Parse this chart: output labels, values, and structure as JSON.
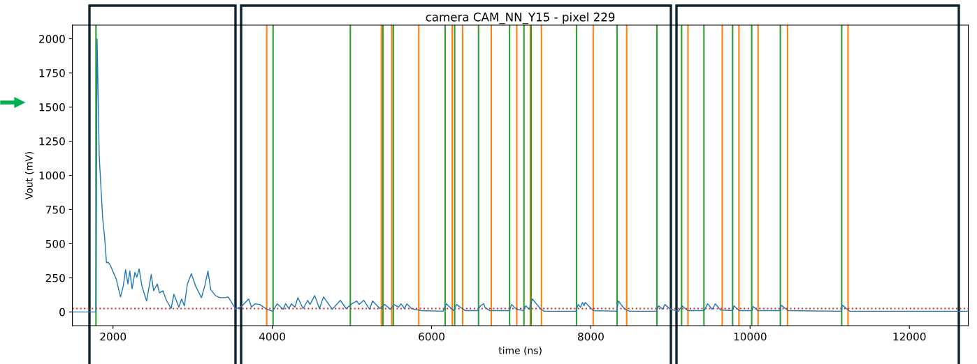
{
  "chart_data": {
    "type": "line",
    "title": "camera CAM_NN_Y15 - pixel 229",
    "xlabel": "time (ns)",
    "ylabel": "Vout (mV)",
    "xlim": [
      1490,
      12740
    ],
    "xticks": [
      2000,
      4000,
      6000,
      8000,
      10000,
      12000
    ],
    "ylim": [
      -100,
      2100
    ],
    "yticks": [
      0,
      250,
      500,
      750,
      1000,
      1250,
      1500,
      1750,
      2000
    ],
    "grid": false,
    "marker": "none",
    "line_style": "solid",
    "series": [
      {
        "color": "#1f77b4",
        "x": [
          1490,
          1785,
          1800,
          1827,
          1851,
          1871,
          1895,
          1918,
          1939,
          1968,
          1997,
          2041,
          2094,
          2129,
          2158,
          2187,
          2211,
          2240,
          2275,
          2299,
          2328,
          2363,
          2422,
          2480,
          2510,
          2556,
          2583,
          2627,
          2671,
          2730,
          2765,
          2827,
          2861,
          2896,
          2934,
          2984,
          3037,
          3110,
          3154,
          3192,
          3227,
          3286,
          3344,
          3403,
          3447,
          3505,
          3540,
          3622,
          3704,
          3739,
          3783,
          3842,
          3930,
          4005,
          4062,
          4137,
          4167,
          4210,
          4240,
          4284,
          4322,
          4386,
          4445,
          4474,
          4533,
          4592,
          4644,
          4752,
          4855,
          4928,
          5001,
          5060,
          5089,
          5148,
          5221,
          5259,
          5352,
          5411,
          5484,
          5528,
          5587,
          5616,
          5660,
          5690,
          5748,
          5865,
          6143,
          6187,
          6275,
          6313,
          6423,
          6582,
          6612,
          6656,
          6670,
          6729,
          6978,
          7007,
          7066,
          7153,
          7183,
          7227,
          7265,
          7373,
          7417,
          7812,
          7842,
          7871,
          7895,
          7915,
          7930,
          8032,
          8325,
          8345,
          8427,
          8486,
          8823,
          8852,
          8902,
          8931,
          8998,
          9101,
          9145,
          9218,
          9423,
          9467,
          9525,
          9564,
          9628,
          9780,
          9798,
          9863,
          10023,
          10038,
          10096,
          10375,
          10390,
          10478,
          11145,
          11159,
          11253,
          12732
        ],
        "values": [
          0,
          0,
          2000,
          1140,
          885,
          680,
          545,
          360,
          365,
          340,
          300,
          240,
          110,
          190,
          310,
          205,
          300,
          170,
          290,
          255,
          315,
          190,
          80,
          275,
          155,
          205,
          140,
          155,
          85,
          25,
          130,
          35,
          95,
          45,
          205,
          280,
          190,
          105,
          195,
          300,
          165,
          120,
          105,
          105,
          110,
          55,
          20,
          45,
          95,
          35,
          60,
          55,
          20,
          5,
          60,
          20,
          60,
          25,
          60,
          35,
          105,
          25,
          85,
          55,
          120,
          25,
          110,
          20,
          85,
          25,
          60,
          80,
          55,
          85,
          20,
          80,
          25,
          55,
          20,
          55,
          35,
          60,
          25,
          60,
          25,
          10,
          5,
          60,
          10,
          55,
          10,
          10,
          45,
          60,
          35,
          10,
          10,
          55,
          20,
          10,
          45,
          20,
          95,
          20,
          5,
          5,
          55,
          35,
          70,
          45,
          70,
          10,
          5,
          80,
          20,
          5,
          5,
          45,
          20,
          55,
          20,
          5,
          45,
          10,
          10,
          60,
          20,
          60,
          15,
          10,
          45,
          10,
          10,
          40,
          10,
          10,
          50,
          10,
          5,
          50,
          5,
          5
        ]
      }
    ],
    "ref_lines": [
      {
        "axis": "y",
        "value": 25,
        "color": "#d62728",
        "line_style": "dotted"
      },
      {
        "axis": "x",
        "value": 1786,
        "color": "#2ca02c"
      },
      {
        "axis": "x",
        "value": 3930,
        "color": "#ff7f0e"
      },
      {
        "axis": "x",
        "value": 4010,
        "color": "#2ca02c"
      },
      {
        "axis": "x",
        "value": 4980,
        "color": "#2ca02c"
      },
      {
        "axis": "x",
        "value": 5370,
        "color": "#ff7f0e"
      },
      {
        "axis": "x",
        "value": 5390,
        "color": "#2ca02c"
      },
      {
        "axis": "x",
        "value": 5500,
        "color": "#ff7f0e"
      },
      {
        "axis": "x",
        "value": 5520,
        "color": "#2ca02c"
      },
      {
        "axis": "x",
        "value": 5840,
        "color": "#ff7f0e"
      },
      {
        "axis": "x",
        "value": 6170,
        "color": "#2ca02c"
      },
      {
        "axis": "x",
        "value": 6260,
        "color": "#ff7f0e"
      },
      {
        "axis": "x",
        "value": 6290,
        "color": "#2ca02c"
      },
      {
        "axis": "x",
        "value": 6390,
        "color": "#ff7f0e"
      },
      {
        "axis": "x",
        "value": 6590,
        "color": "#2ca02c"
      },
      {
        "axis": "x",
        "value": 6750,
        "color": "#ff7f0e"
      },
      {
        "axis": "x",
        "value": 6980,
        "color": "#2ca02c"
      },
      {
        "axis": "x",
        "value": 7070,
        "color": "#ff7f0e"
      },
      {
        "axis": "x",
        "value": 7160,
        "color": "#2ca02c"
      },
      {
        "axis": "x",
        "value": 7240,
        "color": "#ff7f0e"
      },
      {
        "axis": "x",
        "value": 7250,
        "color": "#2ca02c"
      },
      {
        "axis": "x",
        "value": 7380,
        "color": "#ff7f0e"
      },
      {
        "axis": "x",
        "value": 7820,
        "color": "#2ca02c"
      },
      {
        "axis": "x",
        "value": 8030,
        "color": "#ff7f0e"
      },
      {
        "axis": "x",
        "value": 8330,
        "color": "#2ca02c"
      },
      {
        "axis": "x",
        "value": 8450,
        "color": "#ff7f0e"
      },
      {
        "axis": "x",
        "value": 8830,
        "color": "#2ca02c"
      },
      {
        "axis": "x",
        "value": 9140,
        "color": "#2ca02c"
      },
      {
        "axis": "x",
        "value": 9220,
        "color": "#ff7f0e"
      },
      {
        "axis": "x",
        "value": 9420,
        "color": "#2ca02c"
      },
      {
        "axis": "x",
        "value": 9650,
        "color": "#ff7f0e"
      },
      {
        "axis": "x",
        "value": 9780,
        "color": "#2ca02c"
      },
      {
        "axis": "x",
        "value": 9860,
        "color": "#ff7f0e"
      },
      {
        "axis": "x",
        "value": 10020,
        "color": "#2ca02c"
      },
      {
        "axis": "x",
        "value": 10100,
        "color": "#ff7f0e"
      },
      {
        "axis": "x",
        "value": 10380,
        "color": "#2ca02c"
      },
      {
        "axis": "x",
        "value": 10470,
        "color": "#ff7f0e"
      },
      {
        "axis": "x",
        "value": 11150,
        "color": "#2ca02c"
      },
      {
        "axis": "x",
        "value": 11230,
        "color": "#ff7f0e"
      }
    ]
  }
}
